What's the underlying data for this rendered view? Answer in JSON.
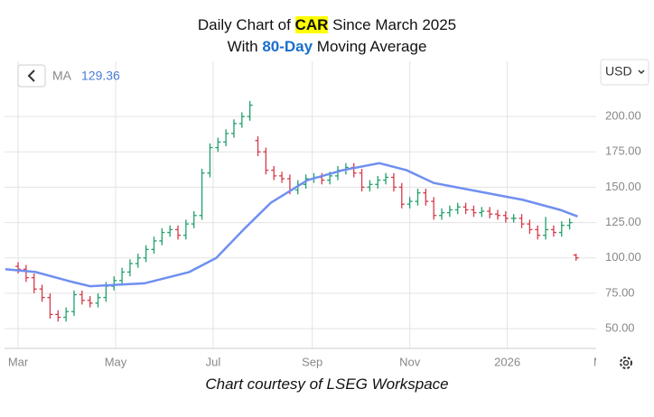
{
  "chart_data": {
    "type": "ohlc",
    "title": [
      "Daily Chart of ",
      "CAR",
      " Since March 2025"
    ],
    "subtitle": [
      "With ",
      "80-Day",
      " Moving Average"
    ],
    "caption": "Chart courtesy of LSEG Workspace",
    "currency": "USD",
    "up_color": "#22a06b",
    "down_color": "#d63a4a",
    "x": [
      0,
      5,
      10,
      15,
      20,
      25,
      30,
      35,
      40,
      45,
      50,
      55,
      60,
      65,
      70,
      75,
      80,
      85,
      90,
      95,
      100,
      105,
      110,
      115,
      120,
      125,
      130,
      135,
      140,
      145,
      150,
      155,
      160,
      165,
      170,
      175,
      180,
      185,
      190,
      195,
      200,
      205,
      210,
      215,
      220,
      225,
      230,
      235,
      240,
      245,
      250,
      255,
      260,
      265,
      270,
      275,
      280,
      285,
      290,
      295,
      300,
      305,
      310,
      315,
      320,
      325,
      330,
      335,
      340,
      345,
      349
    ],
    "ohlc": [
      [
        94,
        97,
        89,
        92
      ],
      [
        92,
        95,
        83,
        86
      ],
      [
        86,
        89,
        75,
        78
      ],
      [
        78,
        81,
        69,
        72
      ],
      [
        72,
        75,
        57,
        60
      ],
      [
        60,
        63,
        55,
        58
      ],
      [
        58,
        65,
        55,
        62
      ],
      [
        62,
        77,
        59,
        74
      ],
      [
        74,
        77,
        67,
        70
      ],
      [
        70,
        73,
        65,
        68
      ],
      [
        68,
        75,
        65,
        72
      ],
      [
        72,
        83,
        69,
        80
      ],
      [
        80,
        87,
        77,
        84
      ],
      [
        84,
        93,
        81,
        90
      ],
      [
        90,
        99,
        87,
        96
      ],
      [
        96,
        103,
        93,
        100
      ],
      [
        100,
        109,
        97,
        106
      ],
      [
        106,
        115,
        103,
        112
      ],
      [
        112,
        121,
        109,
        118
      ],
      [
        118,
        123,
        115,
        120
      ],
      [
        120,
        123,
        113,
        116
      ],
      [
        116,
        127,
        113,
        124
      ],
      [
        124,
        133,
        121,
        130
      ],
      [
        130,
        163,
        127,
        160
      ],
      [
        160,
        181,
        157,
        178
      ],
      [
        178,
        185,
        175,
        182
      ],
      [
        182,
        191,
        179,
        188
      ],
      [
        188,
        198,
        185,
        195
      ],
      [
        195,
        203,
        192,
        200
      ],
      [
        200,
        211,
        197,
        208
      ],
      [
        183,
        186,
        172,
        175
      ],
      [
        175,
        178,
        159,
        162
      ],
      [
        162,
        165,
        155,
        158
      ],
      [
        158,
        161,
        153,
        156
      ],
      [
        156,
        159,
        145,
        148
      ],
      [
        148,
        155,
        145,
        152
      ],
      [
        152,
        159,
        149,
        156
      ],
      [
        156,
        160,
        153,
        157
      ],
      [
        157,
        160,
        152,
        155
      ],
      [
        155,
        161,
        152,
        158
      ],
      [
        158,
        165,
        155,
        162
      ],
      [
        162,
        167,
        159,
        164
      ],
      [
        164,
        167,
        157,
        160
      ],
      [
        160,
        163,
        147,
        150
      ],
      [
        150,
        155,
        147,
        152
      ],
      [
        152,
        158,
        149,
        155
      ],
      [
        155,
        160,
        152,
        157
      ],
      [
        157,
        160,
        147,
        150
      ],
      [
        150,
        153,
        135,
        138
      ],
      [
        138,
        143,
        135,
        140
      ],
      [
        140,
        149,
        137,
        146
      ],
      [
        146,
        149,
        137,
        140
      ],
      [
        140,
        143,
        127,
        130
      ],
      [
        130,
        135,
        127,
        132
      ],
      [
        132,
        137,
        129,
        134
      ],
      [
        134,
        139,
        131,
        136
      ],
      [
        136,
        139,
        131,
        134
      ],
      [
        134,
        137,
        129,
        132
      ],
      [
        132,
        136,
        129,
        133
      ],
      [
        133,
        136,
        128,
        131
      ],
      [
        131,
        134,
        127,
        130
      ],
      [
        130,
        133,
        125,
        128
      ],
      [
        128,
        131,
        125,
        128
      ],
      [
        128,
        131,
        121,
        124
      ],
      [
        124,
        127,
        117,
        120
      ],
      [
        120,
        123,
        113,
        116
      ],
      [
        116,
        129,
        113,
        120
      ],
      [
        120,
        123,
        115,
        118
      ],
      [
        118,
        126,
        115,
        123
      ],
      [
        123,
        128,
        120,
        125
      ],
      [
        102,
        103,
        98,
        100
      ]
    ],
    "ma": {
      "name": "MA",
      "color": "#6f8ff0",
      "x": [
        -8,
        11,
        34,
        45,
        79,
        107,
        124,
        141,
        158,
        181,
        203,
        226,
        243,
        260,
        288,
        316,
        339,
        350
      ],
      "values": [
        92,
        90,
        83,
        80,
        82,
        90,
        100,
        120,
        139,
        155,
        162,
        167,
        162,
        153,
        147,
        141,
        134,
        129.36
      ]
    },
    "xlim": [
      -8.5,
      361.6
    ],
    "xticks": [
      {
        "value": 0,
        "label": "Mar"
      },
      {
        "value": 61,
        "label": "May"
      },
      {
        "value": 122,
        "label": "Jul"
      },
      {
        "value": 184,
        "label": "Sep"
      },
      {
        "value": 245,
        "label": "Nov"
      },
      {
        "value": 306,
        "label": "2026"
      },
      {
        "value": 365,
        "label": "Ma"
      }
    ],
    "ylim": [
      36,
      239
    ],
    "yticks": [
      {
        "value": 50,
        "label": "50.00"
      },
      {
        "value": 75,
        "label": "75.00"
      },
      {
        "value": 100,
        "label": "100.00"
      },
      {
        "value": 125,
        "label": "125.00"
      },
      {
        "value": 150,
        "label": "150.00"
      },
      {
        "value": 175,
        "label": "175.00"
      },
      {
        "value": 200,
        "label": "200.00"
      }
    ],
    "grid": true
  }
}
